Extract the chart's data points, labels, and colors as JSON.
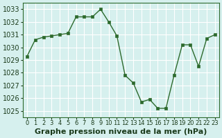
{
  "x": [
    0,
    1,
    2,
    3,
    4,
    5,
    6,
    7,
    8,
    9,
    10,
    11,
    12,
    13,
    14,
    15,
    16,
    17,
    18,
    19,
    20,
    21,
    22,
    23
  ],
  "y": [
    1029.3,
    1030.6,
    1030.8,
    1030.9,
    1031.0,
    1031.1,
    1032.4,
    1032.4,
    1032.4,
    1033.0,
    1032.0,
    1030.9,
    1027.8,
    1027.2,
    1025.7,
    1025.9,
    1025.2,
    1025.2,
    1027.8,
    1030.2,
    1030.2,
    1028.5,
    1030.7,
    1031.0
  ],
  "line_color": "#2d6a2d",
  "marker": "s",
  "marker_size": 3,
  "bg_color": "#d6f0ee",
  "grid_color": "#ffffff",
  "ylabel_ticks": [
    1025,
    1026,
    1027,
    1028,
    1029,
    1030,
    1031,
    1032,
    1033
  ],
  "xlabel": "Graphe pression niveau de la mer (hPa)",
  "ylim": [
    1024.5,
    1033.5
  ],
  "xlim": [
    -0.5,
    23.5
  ],
  "title_color": "#1a3a1a",
  "xlabel_fontsize": 8,
  "tick_fontsize": 7,
  "xtick_fontsize": 6
}
